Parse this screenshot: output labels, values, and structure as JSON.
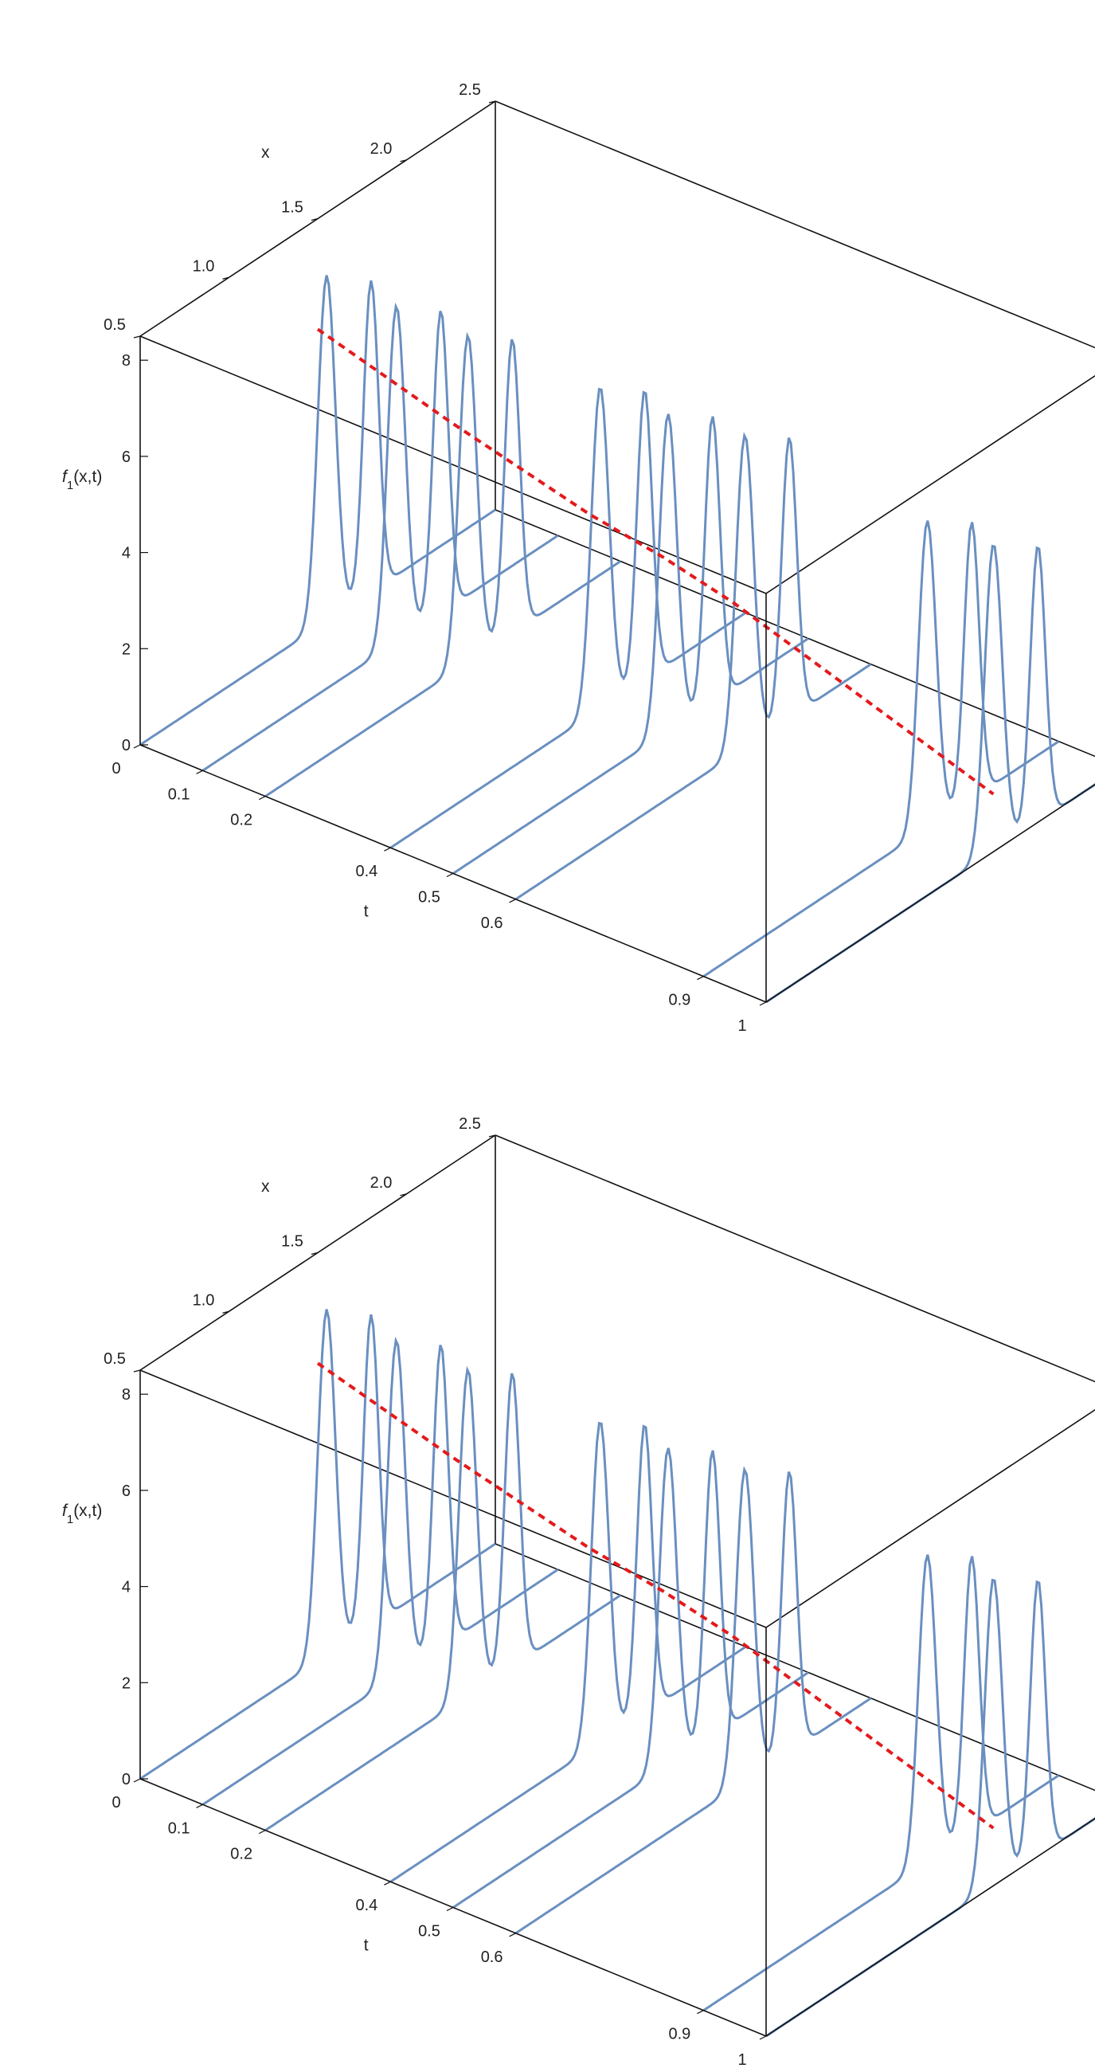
{
  "chart_data": [
    {
      "type": "line",
      "axes": {
        "t": {
          "label": "t",
          "range": [
            0,
            1
          ],
          "ticks": [
            "0",
            "0.1",
            "0.2",
            "0.4",
            "0.5",
            "0.6",
            "0.9",
            "1"
          ]
        },
        "x": {
          "label": "x",
          "range": [
            0.5,
            2.5
          ],
          "ticks": [
            "0.5",
            "1.0",
            "1.5",
            "2.0",
            "2.5"
          ]
        },
        "z": {
          "label_base": "f",
          "label_sub": "1",
          "label_tail": "(x,t)",
          "range": [
            0,
            8.5
          ],
          "ticks": [
            "0",
            "2",
            "4",
            "6",
            "8"
          ]
        }
      },
      "slice_color": "#6a8fc0",
      "ridge_color": "#e31a1c",
      "series": [
        {
          "t": 0.0,
          "peak_x": 1.55,
          "peak": 7.2
        },
        {
          "t": 0.1,
          "peak_x": 1.59,
          "peak": 7.0
        },
        {
          "t": 0.2,
          "peak_x": 1.64,
          "peak": 6.8
        },
        {
          "t": 0.4,
          "peak_x": 1.68,
          "peak": 6.7
        },
        {
          "t": 0.5,
          "peak_x": 1.71,
          "peak": 6.6
        },
        {
          "t": 0.6,
          "peak_x": 1.79,
          "peak": 6.5
        },
        {
          "t": 0.9,
          "peak_x": 1.76,
          "peak": 6.4
        },
        {
          "t": 1.0,
          "peak_x": 1.78,
          "peak": 6.4
        }
      ],
      "ridge": {
        "points": [
          [
            0.0,
            1.5
          ],
          [
            0.2,
            1.55
          ],
          [
            0.4,
            1.62
          ],
          [
            0.5,
            1.68
          ],
          [
            0.6,
            1.72
          ],
          [
            0.8,
            1.75
          ],
          [
            1.0,
            1.78
          ]
        ]
      }
    },
    {
      "type": "line",
      "axes": {
        "t": {
          "label": "t",
          "range": [
            0,
            1
          ],
          "ticks": [
            "0",
            "0.1",
            "0.2",
            "0.4",
            "0.5",
            "0.6",
            "0.9",
            "1"
          ]
        },
        "x": {
          "label": "x",
          "range": [
            0.5,
            2.5
          ],
          "ticks": [
            "0.5",
            "1.0",
            "1.5",
            "2.0",
            "2.5"
          ]
        },
        "z": {
          "label_base": "f",
          "label_sub": "1",
          "label_tail": "(x,t)",
          "range": [
            0,
            8.5
          ],
          "ticks": [
            "0",
            "2",
            "4",
            "6",
            "8"
          ]
        }
      },
      "slice_color": "#6a8fc0",
      "ridge_color": "#e31a1c",
      "series": [
        {
          "t": 0.0,
          "peak_x": 1.55,
          "peak": 7.2
        },
        {
          "t": 0.1,
          "peak_x": 1.59,
          "peak": 7.0
        },
        {
          "t": 0.2,
          "peak_x": 1.64,
          "peak": 6.8
        },
        {
          "t": 0.4,
          "peak_x": 1.68,
          "peak": 6.7
        },
        {
          "t": 0.5,
          "peak_x": 1.71,
          "peak": 6.6
        },
        {
          "t": 0.6,
          "peak_x": 1.79,
          "peak": 6.5
        },
        {
          "t": 0.9,
          "peak_x": 1.76,
          "peak": 6.4
        },
        {
          "t": 1.0,
          "peak_x": 1.78,
          "peak": 6.4
        }
      ],
      "ridge": {
        "points": [
          [
            0.0,
            1.5
          ],
          [
            0.2,
            1.55
          ],
          [
            0.4,
            1.62
          ],
          [
            0.5,
            1.68
          ],
          [
            0.6,
            1.72
          ],
          [
            0.8,
            1.75
          ],
          [
            1.0,
            1.78
          ]
        ]
      }
    }
  ]
}
